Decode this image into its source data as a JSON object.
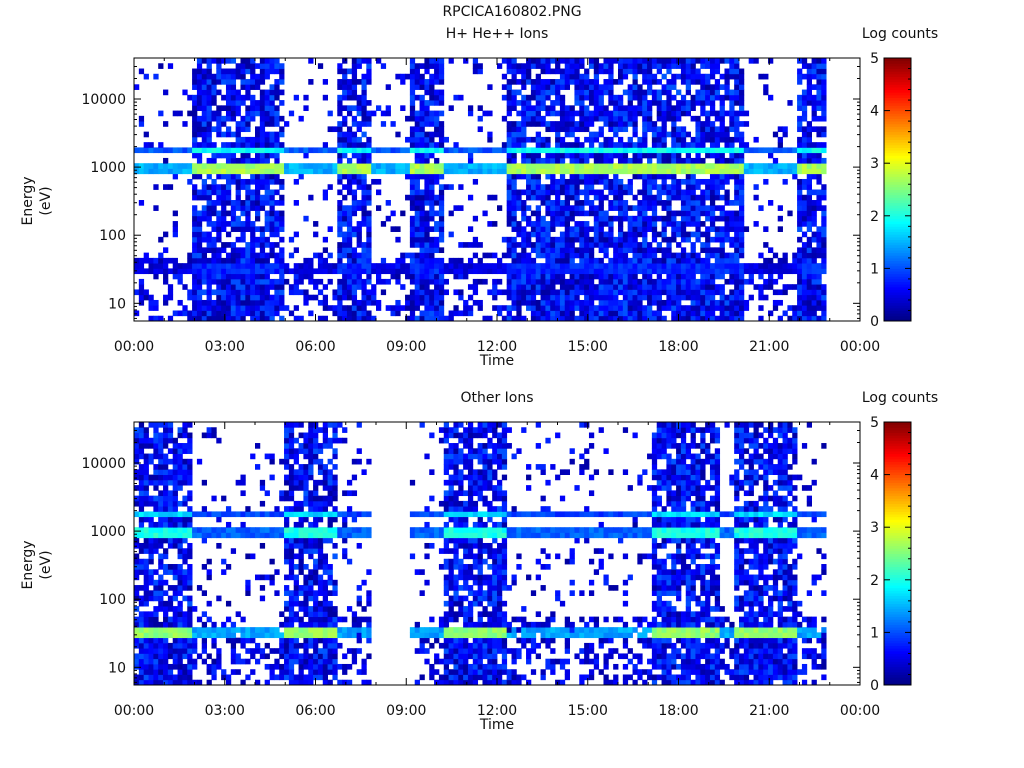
{
  "figure": {
    "title": "RPCICA160802.PNG"
  },
  "chart_data": [
    {
      "type": "heatmap",
      "title": "H+ He++ Ions",
      "xlabel": "Time",
      "ylabel": "Energy (eV)",
      "x_ticks": [
        "00:00",
        "03:00",
        "06:00",
        "09:00",
        "12:00",
        "15:00",
        "18:00",
        "21:00",
        "00:00"
      ],
      "x_range_hours": [
        0,
        24
      ],
      "y_scale": "log",
      "y_ticks": [
        "10",
        "100",
        "1000",
        "10000"
      ],
      "y_range": [
        5.5,
        40000
      ],
      "colorbar": {
        "label": "Log counts",
        "ticks": [
          "0",
          "1",
          "2",
          "3",
          "4",
          "5"
        ],
        "range": [
          0,
          5
        ]
      },
      "active_intervals_hours": [
        [
          1.9,
          4.9
        ],
        [
          6.7,
          7.9
        ],
        [
          9.1,
          10.2
        ],
        [
          12.4,
          20.2
        ],
        [
          21.9,
          22.9
        ]
      ],
      "sparse_intervals_hours": [
        [
          0,
          1.9
        ],
        [
          4.9,
          6.7
        ],
        [
          7.9,
          9.1
        ],
        [
          10.2,
          12.4
        ],
        [
          20.2,
          21.9
        ]
      ],
      "bands": [
        {
          "energy_ev": 900,
          "log_counts": 2.7
        },
        {
          "energy_ev": 1800,
          "log_counts": 1.9
        },
        {
          "energy_ev": 35,
          "log_counts": 0.8
        }
      ],
      "data_end_hours": 22.9
    },
    {
      "type": "heatmap",
      "title": "Other Ions",
      "xlabel": "Time",
      "ylabel": "Energy (eV)",
      "x_ticks": [
        "00:00",
        "03:00",
        "06:00",
        "09:00",
        "12:00",
        "15:00",
        "18:00",
        "21:00",
        "00:00"
      ],
      "x_range_hours": [
        0,
        24
      ],
      "y_scale": "log",
      "y_ticks": [
        "10",
        "100",
        "1000",
        "10000"
      ],
      "y_range": [
        5.5,
        40000
      ],
      "colorbar": {
        "label": "Log counts",
        "ticks": [
          "0",
          "1",
          "2",
          "3",
          "4",
          "5"
        ],
        "range": [
          0,
          5
        ]
      },
      "active_intervals_hours": [
        [
          0,
          1.9
        ],
        [
          4.9,
          6.7
        ],
        [
          10.2,
          12.4
        ],
        [
          17.1,
          19.3
        ],
        [
          19.9,
          21.9
        ]
      ],
      "sparse_intervals_hours": [
        [
          1.9,
          4.9
        ],
        [
          6.7,
          7.9
        ],
        [
          9.1,
          10.2
        ],
        [
          12.4,
          17.1
        ],
        [
          19.3,
          19.9
        ],
        [
          21.9,
          22.9
        ]
      ],
      "gap_intervals_hours": [
        [
          7.9,
          9.1
        ]
      ],
      "bands": [
        {
          "energy_ev": 900,
          "log_counts": 2.0
        },
        {
          "energy_ev": 1800,
          "log_counts": 1.7
        },
        {
          "energy_ev": 33,
          "log_counts": 2.6
        }
      ],
      "data_end_hours": 22.9
    }
  ]
}
